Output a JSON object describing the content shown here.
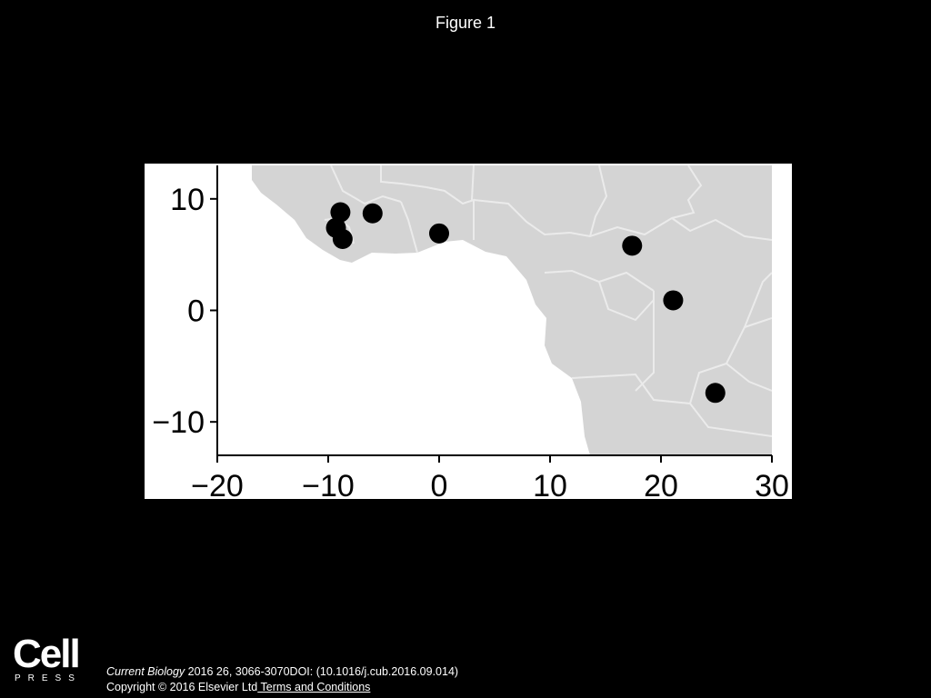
{
  "slide": {
    "title": "Figure 1"
  },
  "map": {
    "xaxis": {
      "ticks": [
        "−20",
        "−10",
        "0",
        "10",
        "20",
        "30"
      ],
      "range": [
        -20,
        30
      ]
    },
    "yaxis": {
      "ticks": [
        "10",
        "0",
        "−10"
      ],
      "range": [
        -13,
        13
      ]
    },
    "colors": {
      "land": "#d4d4d4",
      "border": "#ebebeb",
      "sea": "#ffffff",
      "point": "#000000"
    },
    "points": [
      {
        "lon": -8.9,
        "lat": 8.8
      },
      {
        "lon": -9.3,
        "lat": 7.4
      },
      {
        "lon": -8.7,
        "lat": 6.4
      },
      {
        "lon": -6.0,
        "lat": 8.7
      },
      {
        "lon": 0.0,
        "lat": 6.9
      },
      {
        "lon": 17.4,
        "lat": 5.8
      },
      {
        "lon": 21.1,
        "lat": 0.9
      },
      {
        "lon": 24.9,
        "lat": -7.4
      }
    ]
  },
  "footer": {
    "logo_word": "Cell",
    "logo_sub": "PRESS",
    "journal": "Current Biology",
    "citation_rest": " 2016 26, 3066-3070DOI: (10.1016/j.cub.2016.09.014)",
    "copyright": "Copyright © 2016 Elsevier Ltd",
    "terms_link": " Terms and Conditions"
  }
}
